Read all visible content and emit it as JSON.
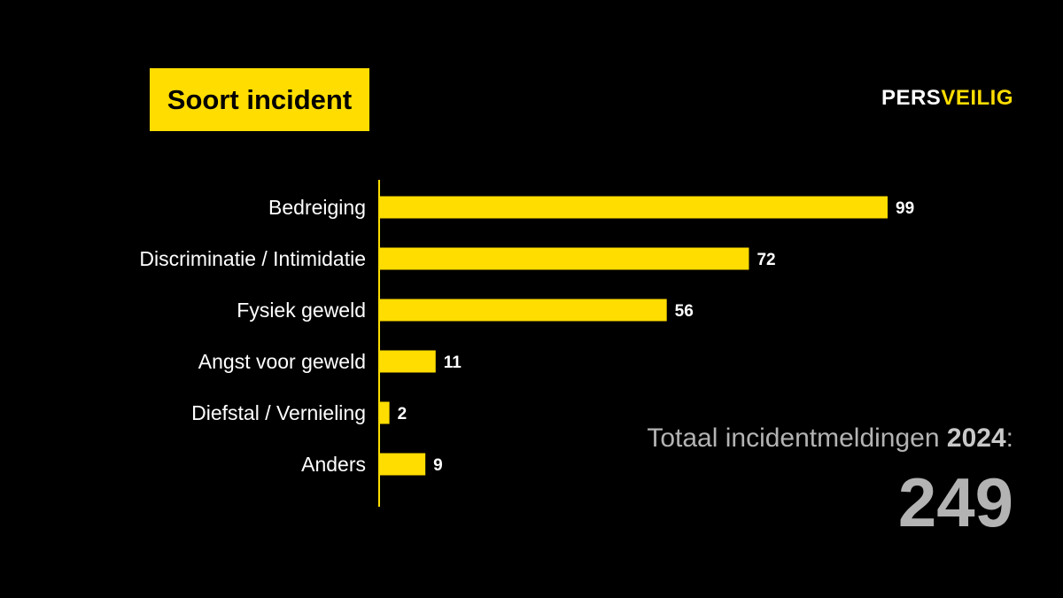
{
  "title": "Soort incident",
  "logo": {
    "part_a": "PERS",
    "part_b": "VEILIG"
  },
  "total": {
    "label": "Totaal incidentmeldingen",
    "year": "2024",
    "suffix": ":",
    "value": "249"
  },
  "colors": {
    "background": "#000000",
    "accent": "#ffdd00",
    "text": "#ffffff",
    "muted": "#b3b3b3"
  },
  "chart_data": {
    "type": "bar",
    "orientation": "horizontal",
    "categories": [
      "Bedreiging",
      "Discriminatie / Intimidatie",
      "Fysiek geweld",
      "Angst voor geweld",
      "Diefstal / Vernieling",
      "Anders"
    ],
    "values": [
      99,
      72,
      56,
      11,
      2,
      9
    ],
    "xlim": [
      0,
      99
    ],
    "grid": false,
    "data_labels": true
  }
}
